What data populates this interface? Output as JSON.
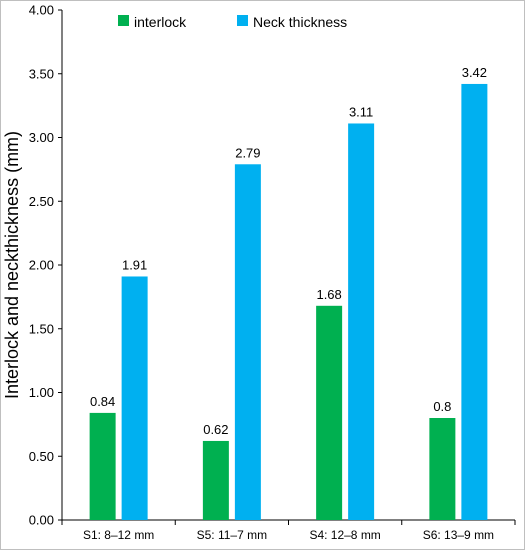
{
  "chart_data": {
    "type": "bar",
    "categories": [
      "S1: 8–12 mm",
      "S5: 11–7 mm",
      "S4: 12–8 mm",
      "S6: 13–9 mm"
    ],
    "series": [
      {
        "name": "interlock",
        "values": [
          0.84,
          0.62,
          1.68,
          0.8
        ],
        "labels": [
          "0.84",
          "0.62",
          "1.68",
          "0.8"
        ],
        "color": "#00b050"
      },
      {
        "name": "Neck thickness",
        "values": [
          1.91,
          2.79,
          3.11,
          3.42
        ],
        "labels": [
          "1.91",
          "2.79",
          "3.11",
          "3.42"
        ],
        "color": "#00b0f0"
      }
    ],
    "ylabel": "Interlock and neckthickness (mm)",
    "xlabel": "",
    "ylim": [
      0,
      4
    ],
    "yticks": [
      "0.00",
      "0.50",
      "1.00",
      "1.50",
      "2.00",
      "2.50",
      "3.00",
      "3.50",
      "4.00"
    ],
    "grid": false,
    "legend_position": "top-left"
  }
}
